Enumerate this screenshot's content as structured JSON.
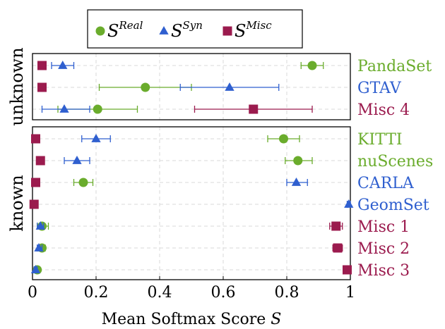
{
  "chart_data": {
    "type": "scatter",
    "xlabel": "Mean Softmax Score",
    "xlabel_symbol": "S",
    "xlim": [
      0,
      1
    ],
    "xticks": [
      "0",
      "0.2",
      "0.4",
      "0.6",
      "0.8",
      "1"
    ],
    "grid": true,
    "legend_position": "top",
    "groups": [
      {
        "label": "unknown",
        "categories": [
          "PandaSet",
          "GTAV",
          "Misc 4"
        ]
      },
      {
        "label": "known",
        "categories": [
          "KITTI",
          "nuScenes",
          "CARLA",
          "GeomSet",
          "Misc 1",
          "Misc 2",
          "Misc 3"
        ]
      }
    ],
    "category_types": {
      "PandaSet": "real",
      "GTAV": "syn",
      "Misc 4": "misc",
      "KITTI": "real",
      "nuScenes": "real",
      "CARLA": "syn",
      "GeomSet": "syn",
      "Misc 1": "misc",
      "Misc 2": "misc",
      "Misc 3": "misc"
    },
    "series": [
      {
        "name": "Real",
        "symbol": "S",
        "superscript": "Real",
        "marker": "circle",
        "color": "#6aac2c",
        "points": {
          "PandaSet": {
            "x": 0.88,
            "err": [
              0.845,
              0.915
            ]
          },
          "GTAV": {
            "x": 0.355,
            "err": [
              0.21,
              0.5
            ]
          },
          "Misc 4": {
            "x": 0.205,
            "err": [
              0.08,
              0.33
            ]
          },
          "KITTI": {
            "x": 0.79,
            "err": [
              0.74,
              0.84
            ]
          },
          "nuScenes": {
            "x": 0.835,
            "err": [
              0.795,
              0.88
            ]
          },
          "CARLA": {
            "x": 0.16,
            "err": [
              0.13,
              0.19
            ]
          },
          "Misc 1": {
            "x": 0.03,
            "err": [
              0.015,
              0.05
            ]
          },
          "Misc 2": {
            "x": 0.03,
            "err": [
              0.02,
              0.04
            ]
          },
          "Misc 3": {
            "x": 0.015,
            "err": [
              0.01,
              0.02
            ]
          }
        }
      },
      {
        "name": "Syn",
        "symbol": "S",
        "superscript": "Syn",
        "marker": "triangle",
        "color": "#2f5fcf",
        "points": {
          "PandaSet": {
            "x": 0.095,
            "err": [
              0.06,
              0.13
            ]
          },
          "GTAV": {
            "x": 0.62,
            "err": [
              0.465,
              0.775
            ]
          },
          "Misc 4": {
            "x": 0.1,
            "err": [
              0.03,
              0.18
            ]
          },
          "KITTI": {
            "x": 0.2,
            "err": [
              0.155,
              0.245
            ]
          },
          "nuScenes": {
            "x": 0.14,
            "err": [
              0.1,
              0.18
            ]
          },
          "CARLA": {
            "x": 0.83,
            "err": [
              0.8,
              0.865
            ]
          },
          "GeomSet": {
            "x": 0.995,
            "err": [
              0.99,
              1.0
            ]
          },
          "Misc 1": {
            "x": 0.025,
            "err": [
              0.015,
              0.035
            ]
          },
          "Misc 2": {
            "x": 0.02,
            "err": [
              0.015,
              0.03
            ]
          },
          "Misc 3": {
            "x": 0.01,
            "err": [
              0.005,
              0.015
            ]
          }
        }
      },
      {
        "name": "Misc",
        "symbol": "S",
        "superscript": "Misc",
        "marker": "square",
        "color": "#9b1b4e",
        "points": {
          "PandaSet": {
            "x": 0.03,
            "err": [
              0.02,
              0.04
            ]
          },
          "GTAV": {
            "x": 0.03,
            "err": [
              0.02,
              0.04
            ]
          },
          "Misc 4": {
            "x": 0.695,
            "err": [
              0.51,
              0.88
            ]
          },
          "KITTI": {
            "x": 0.01,
            "err": [
              0.005,
              0.015
            ]
          },
          "nuScenes": {
            "x": 0.025,
            "err": [
              0.015,
              0.035
            ]
          },
          "CARLA": {
            "x": 0.01,
            "err": [
              0.005,
              0.015
            ]
          },
          "GeomSet": {
            "x": 0.005,
            "err": [
              0.0,
              0.01
            ]
          },
          "Misc 1": {
            "x": 0.955,
            "err": [
              0.935,
              0.975
            ]
          },
          "Misc 2": {
            "x": 0.96,
            "err": [
              0.945,
              0.975
            ]
          },
          "Misc 3": {
            "x": 0.99,
            "err": [
              0.985,
              0.995
            ]
          }
        }
      }
    ],
    "type_colors": {
      "real": "#6aac2c",
      "syn": "#2f5fcf",
      "misc": "#9b1b4e"
    }
  }
}
